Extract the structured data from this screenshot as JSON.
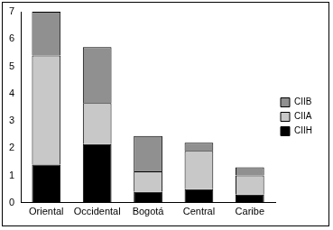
{
  "chart_data": {
    "type": "bar",
    "stacked": true,
    "categories": [
      "Oriental",
      "Occidental",
      "Bogotá",
      "Central",
      "Caribe"
    ],
    "series": [
      {
        "name": "CIIH",
        "color": "#000000",
        "values": [
          1.4,
          2.15,
          0.4,
          0.5,
          0.3
        ]
      },
      {
        "name": "CIIA",
        "color": "#c8c8c8",
        "values": [
          4.0,
          1.5,
          0.75,
          1.4,
          0.7
        ]
      },
      {
        "name": "CIIB",
        "color": "#909090",
        "values": [
          1.6,
          2.05,
          1.3,
          0.3,
          0.3
        ]
      }
    ],
    "ylim": [
      0,
      7
    ],
    "yticks": [
      0,
      1,
      2,
      3,
      4,
      5,
      6,
      7
    ],
    "grid": false,
    "legend": "right"
  }
}
